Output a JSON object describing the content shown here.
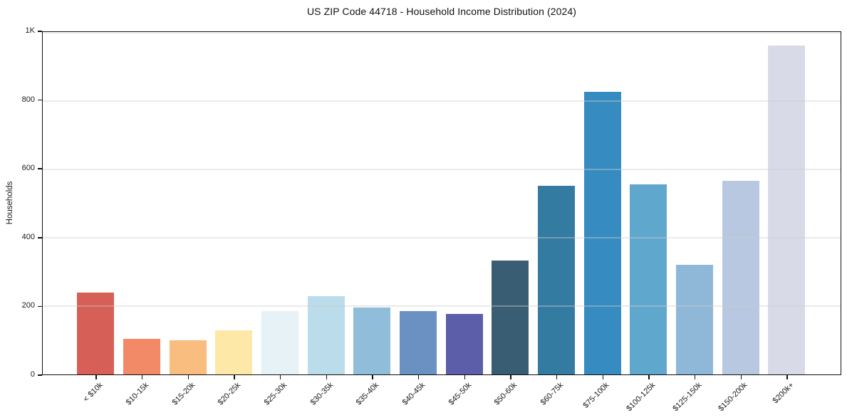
{
  "chart_data": {
    "type": "bar",
    "title": "US ZIP Code 44718 - Household Income Distribution (2024)",
    "xlabel": "",
    "ylabel": "Households",
    "categories": [
      "< $10k",
      "$10-15k",
      "$15-20k",
      "$20-25k",
      "$25-30k",
      "$30-35k",
      "$35-40k",
      "$40-45k",
      "$45-50k",
      "$50-60k",
      "$60-75k",
      "$75-100k",
      "$100-125k",
      "$125-150k",
      "$150-200k",
      "$200k+"
    ],
    "values": [
      240,
      105,
      100,
      130,
      185,
      230,
      196,
      185,
      177,
      334,
      553,
      828,
      557,
      320,
      566,
      962
    ],
    "bar_colors": [
      "#d65f57",
      "#f28a68",
      "#fabd80",
      "#fde8a8",
      "#e7f2f6",
      "#bbdceb",
      "#90bdda",
      "#6b91c3",
      "#5c5ea9",
      "#395e73",
      "#337ba1",
      "#368cc0",
      "#60a7cd",
      "#8fb7d7",
      "#b7c8e0",
      "#d8dae8"
    ],
    "ylim": [
      0,
      1000
    ],
    "yticks": {
      "values": [
        0,
        200,
        400,
        600,
        800,
        1000
      ],
      "labels": [
        "0",
        "200",
        "400",
        "600",
        "800",
        "1K"
      ]
    },
    "grid": "horizontal-only",
    "grid_color": "#ececec",
    "x_tick_rotation": 45,
    "legend": "none",
    "background_color": "#ffffff",
    "spine_color": "#000000"
  }
}
